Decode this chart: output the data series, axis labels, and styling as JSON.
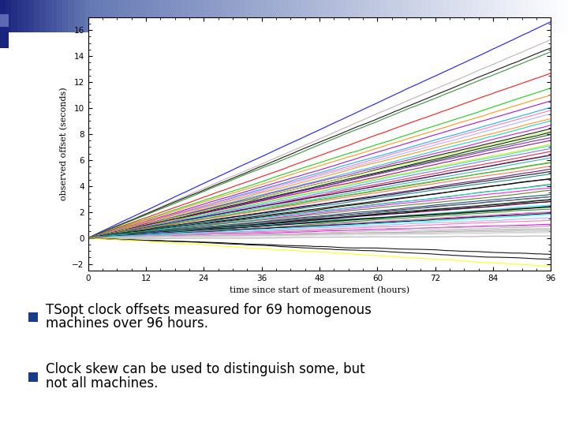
{
  "n_machines": 69,
  "t_start": 0,
  "t_end": 96,
  "ylim": [
    -2.5,
    17
  ],
  "xlim": [
    0,
    96
  ],
  "xticks": [
    0,
    12,
    24,
    36,
    48,
    60,
    72,
    84,
    96
  ],
  "yticks": [
    -2,
    0,
    2,
    4,
    6,
    8,
    10,
    12,
    14,
    16
  ],
  "xlabel": "time since start of measurement (hours)",
  "ylabel": "observed offset (seconds)",
  "bullet_color": "#1a3a8a",
  "background_color": "#ffffff",
  "bullet1_line1": "TSopt clock offsets measured for 69 homogenous",
  "bullet1_line2": "machines over 96 hours.",
  "bullet2_line1": "Clock skew can be used to distinguish some, but",
  "bullet2_line2": "not all machines.",
  "line_data": [
    {
      "slope": 0.174,
      "color": "#0000ff"
    },
    {
      "slope": 0.159,
      "color": "#bbaaaa"
    },
    {
      "slope": 0.152,
      "color": "#000000"
    },
    {
      "slope": 0.149,
      "color": "#228B22"
    },
    {
      "slope": 0.133,
      "color": "#ff0000"
    },
    {
      "slope": 0.12,
      "color": "#00cc00"
    },
    {
      "slope": 0.115,
      "color": "#ff8c00"
    },
    {
      "slope": 0.11,
      "color": "#9900cc"
    },
    {
      "slope": 0.105,
      "color": "#00aaff"
    },
    {
      "slope": 0.102,
      "color": "#ff69b4"
    },
    {
      "slope": 0.099,
      "color": "#aaaaff"
    },
    {
      "slope": 0.096,
      "color": "#ff8c00"
    },
    {
      "slope": 0.094,
      "color": "#00ced1"
    },
    {
      "slope": 0.091,
      "color": "#cc00cc"
    },
    {
      "slope": 0.088,
      "color": "#000000"
    },
    {
      "slope": 0.086,
      "color": "#adff2f"
    },
    {
      "slope": 0.084,
      "color": "#000000"
    },
    {
      "slope": 0.082,
      "color": "#006400"
    },
    {
      "slope": 0.08,
      "color": "#9400d3"
    },
    {
      "slope": 0.078,
      "color": "#800080"
    },
    {
      "slope": 0.076,
      "color": "#ffd700"
    },
    {
      "slope": 0.074,
      "color": "#00fa9a"
    },
    {
      "slope": 0.072,
      "color": "#7b68ee"
    },
    {
      "slope": 0.07,
      "color": "#dc143c"
    },
    {
      "slope": 0.068,
      "color": "#ff4500"
    },
    {
      "slope": 0.066,
      "color": "#000080"
    },
    {
      "slope": 0.064,
      "color": "#20b2aa"
    },
    {
      "slope": 0.062,
      "color": "#808000"
    },
    {
      "slope": 0.06,
      "color": "#32cd32"
    },
    {
      "slope": 0.058,
      "color": "#ff6347"
    },
    {
      "slope": 0.056,
      "color": "#4b0082"
    },
    {
      "slope": 0.054,
      "color": "#000000"
    },
    {
      "slope": 0.052,
      "color": "#008080"
    },
    {
      "slope": 0.049,
      "color": "#000000"
    },
    {
      "slope": 0.046,
      "color": "#000000"
    },
    {
      "slope": 0.044,
      "color": "#804000"
    },
    {
      "slope": 0.042,
      "color": "#00ffff"
    },
    {
      "slope": 0.04,
      "color": "#ff00ff"
    },
    {
      "slope": 0.038,
      "color": "#408000"
    },
    {
      "slope": 0.036,
      "color": "#004080"
    },
    {
      "slope": 0.034,
      "color": "#800040"
    },
    {
      "slope": 0.032,
      "color": "#408080"
    },
    {
      "slope": 0.031,
      "color": "#408040"
    },
    {
      "slope": 0.03,
      "color": "#000000"
    },
    {
      "slope": 0.029,
      "color": "#ff00ff"
    },
    {
      "slope": 0.028,
      "color": "#000000"
    },
    {
      "slope": 0.027,
      "color": "#00ffff"
    },
    {
      "slope": 0.026,
      "color": "#804080"
    },
    {
      "slope": 0.025,
      "color": "#006400"
    },
    {
      "slope": 0.024,
      "color": "#228B22"
    },
    {
      "slope": 0.023,
      "color": "#000000"
    },
    {
      "slope": 0.022,
      "color": "#ff00ff"
    },
    {
      "slope": 0.021,
      "color": "#aaaaaa"
    },
    {
      "slope": 0.02,
      "color": "#000000"
    },
    {
      "slope": 0.018,
      "color": "#00ffff"
    },
    {
      "slope": 0.016,
      "color": "#aaaaff"
    },
    {
      "slope": 0.014,
      "color": "#ff69b4"
    },
    {
      "slope": 0.012,
      "color": "#ff00ff"
    },
    {
      "slope": 0.01,
      "color": "#aaaaaa"
    },
    {
      "slope": 0.009,
      "color": "#bbbbbb"
    },
    {
      "slope": 0.008,
      "color": "#cccccc"
    },
    {
      "slope": 0.007,
      "color": "#aaaaaa"
    },
    {
      "slope": 0.006,
      "color": "#bbbbbb"
    },
    {
      "slope": 0.005,
      "color": "#cccccc"
    },
    {
      "slope": 0.004,
      "color": "#dddddd"
    },
    {
      "slope": 0.003,
      "color": "#aaaaaa"
    },
    {
      "slope": -0.013,
      "color": "#000000"
    },
    {
      "slope": -0.0185,
      "color": "#000000"
    },
    {
      "slope": -0.0215,
      "color": "#ffff00"
    }
  ]
}
